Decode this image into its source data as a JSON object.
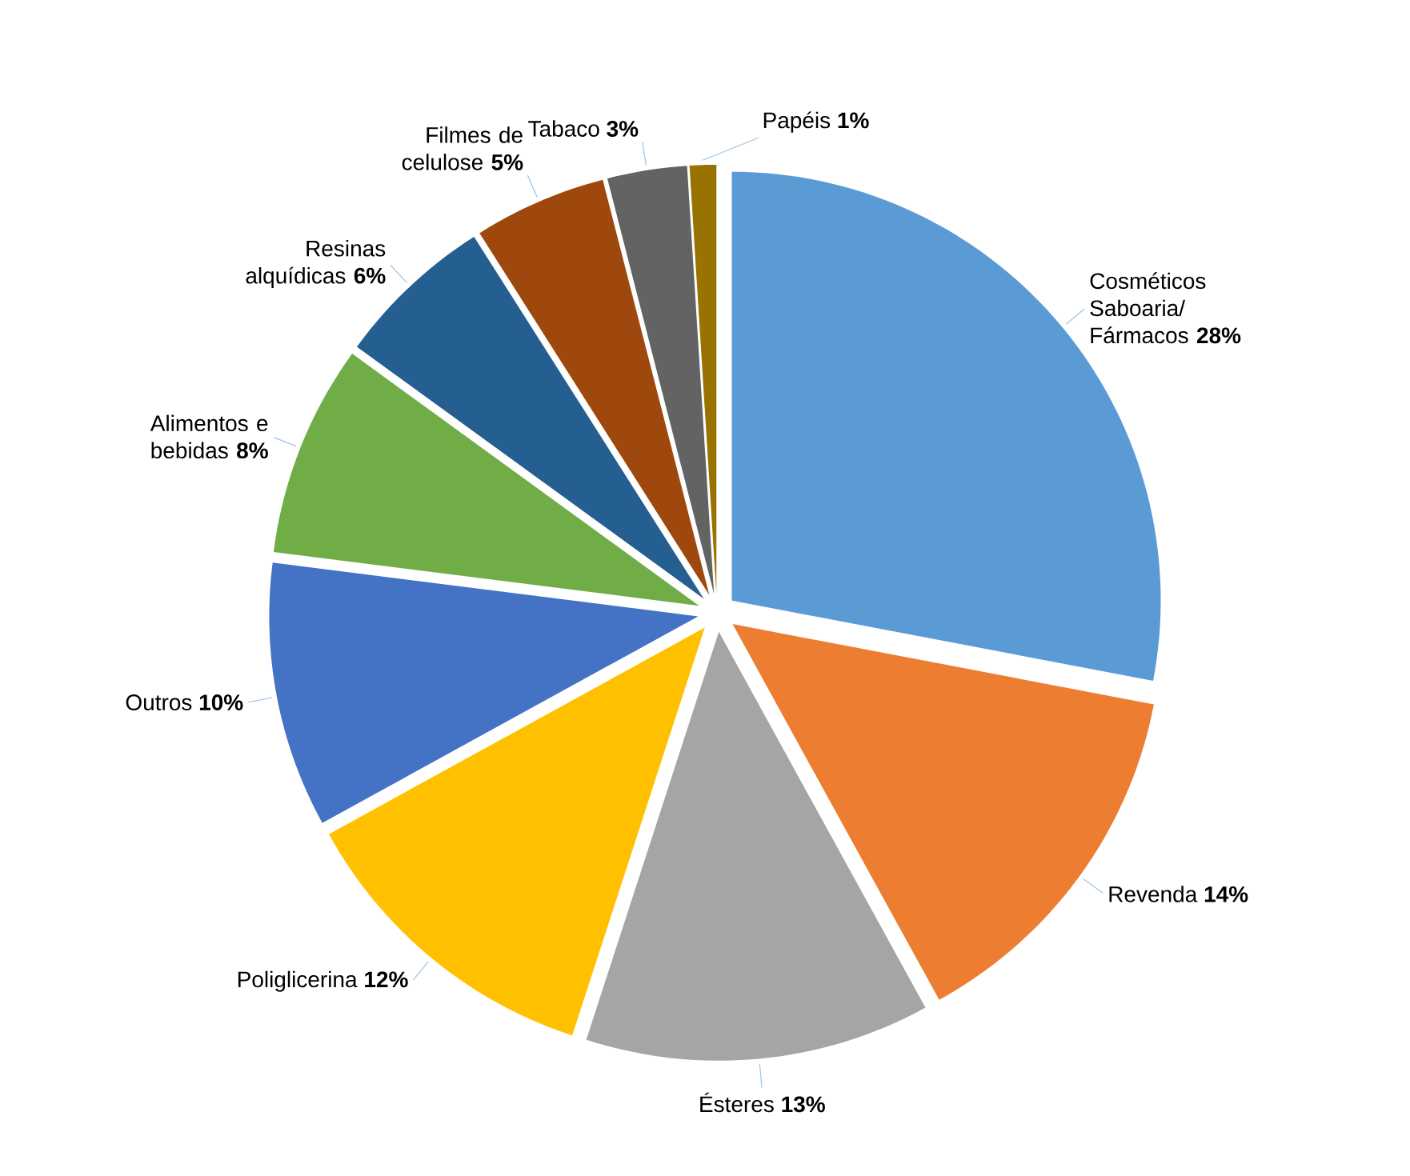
{
  "chart_data": {
    "type": "pie",
    "categories": [
      "Cosméticos Saboaria/ Fármacos",
      "Revenda",
      "Ésteres",
      "Poliglicerina",
      "Outros",
      "Alimentos e bebidas",
      "Resinas alquídicas",
      "Filmes de celulose",
      "Tabaco",
      "Papéis"
    ],
    "values": [
      28,
      14,
      13,
      12,
      10,
      8,
      6,
      5,
      3,
      1
    ],
    "colors": [
      "#5b9bd5",
      "#ed7d31",
      "#a5a5a5",
      "#ffc000",
      "#4472c4",
      "#70ad47",
      "#255e91",
      "#9e480e",
      "#636363",
      "#997300"
    ],
    "value_labels": [
      "28%",
      "14%",
      "13%",
      "12%",
      "10%",
      "8%",
      "6%",
      "5%",
      "3%",
      "1%"
    ]
  }
}
